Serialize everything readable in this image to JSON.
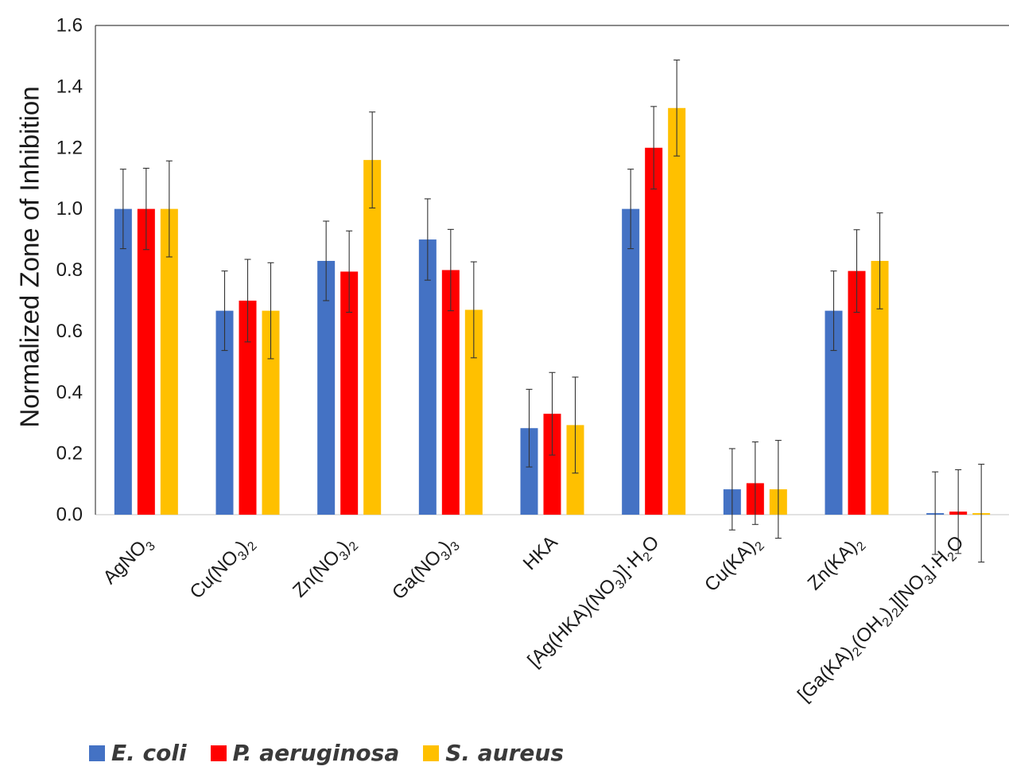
{
  "chart_data": {
    "type": "bar",
    "ylabel": "Normalized Zone of Inhibition",
    "ylim": [
      0,
      1.6
    ],
    "yticks": [
      "0.0",
      "0.2",
      "0.4",
      "0.6",
      "0.8",
      "1.0",
      "1.2",
      "1.4",
      "1.6"
    ],
    "grid": false,
    "legend_position": "bottom-left",
    "categories": [
      {
        "parts": [
          [
            "AgNO",
            ""
          ],
          [
            "3",
            "sub"
          ]
        ]
      },
      {
        "parts": [
          [
            "Cu(NO",
            ""
          ],
          [
            "3",
            "sub"
          ],
          [
            ")",
            ""
          ],
          [
            "2",
            "sub"
          ]
        ]
      },
      {
        "parts": [
          [
            "Zn(NO",
            ""
          ],
          [
            "3",
            "sub"
          ],
          [
            ")",
            ""
          ],
          [
            "2",
            "sub"
          ]
        ]
      },
      {
        "parts": [
          [
            "Ga(NO",
            ""
          ],
          [
            "3",
            "sub"
          ],
          [
            ")",
            ""
          ],
          [
            "3",
            "sub"
          ]
        ]
      },
      {
        "parts": [
          [
            "HKA",
            ""
          ]
        ]
      },
      {
        "parts": [
          [
            "[Ag(HKA)(NO",
            ""
          ],
          [
            "3",
            "sub"
          ],
          [
            ")]·H",
            ""
          ],
          [
            "2",
            "sub"
          ],
          [
            "O",
            ""
          ]
        ]
      },
      {
        "parts": [
          [
            "Cu(KA)",
            ""
          ],
          [
            "2",
            "sub"
          ]
        ]
      },
      {
        "parts": [
          [
            "Zn(KA)",
            ""
          ],
          [
            "2",
            "sub"
          ]
        ]
      },
      {
        "parts": [
          [
            "[Ga(KA)",
            ""
          ],
          [
            "2",
            "sub"
          ],
          [
            "(OH",
            ""
          ],
          [
            "2",
            "sub"
          ],
          [
            ")",
            ""
          ],
          [
            "2",
            "sub"
          ],
          [
            "][NO",
            ""
          ],
          [
            "3",
            "sub"
          ],
          [
            "]·H",
            ""
          ],
          [
            "2",
            "sub"
          ],
          [
            "O",
            ""
          ]
        ]
      }
    ],
    "series": [
      {
        "name": "E. coli",
        "color": "#4472c4",
        "values": [
          1.0,
          0.667,
          0.83,
          0.9,
          0.283,
          1.0,
          0.083,
          0.667,
          0.005
        ],
        "errors": [
          0.13,
          0.13,
          0.13,
          0.133,
          0.127,
          0.13,
          0.133,
          0.13,
          0.135
        ]
      },
      {
        "name": "P. aeruginosa",
        "color": "#ff0000",
        "values": [
          1.0,
          0.7,
          0.795,
          0.8,
          0.33,
          1.2,
          0.103,
          0.797,
          0.01
        ],
        "errors": [
          0.133,
          0.135,
          0.133,
          0.133,
          0.135,
          0.135,
          0.135,
          0.135,
          0.137
        ]
      },
      {
        "name": "S. aureus",
        "color": "#ffc000",
        "values": [
          1.0,
          0.667,
          1.16,
          0.67,
          0.293,
          1.33,
          0.083,
          0.83,
          0.005
        ],
        "errors": [
          0.157,
          0.157,
          0.157,
          0.157,
          0.157,
          0.157,
          0.16,
          0.157,
          0.16
        ]
      }
    ]
  }
}
